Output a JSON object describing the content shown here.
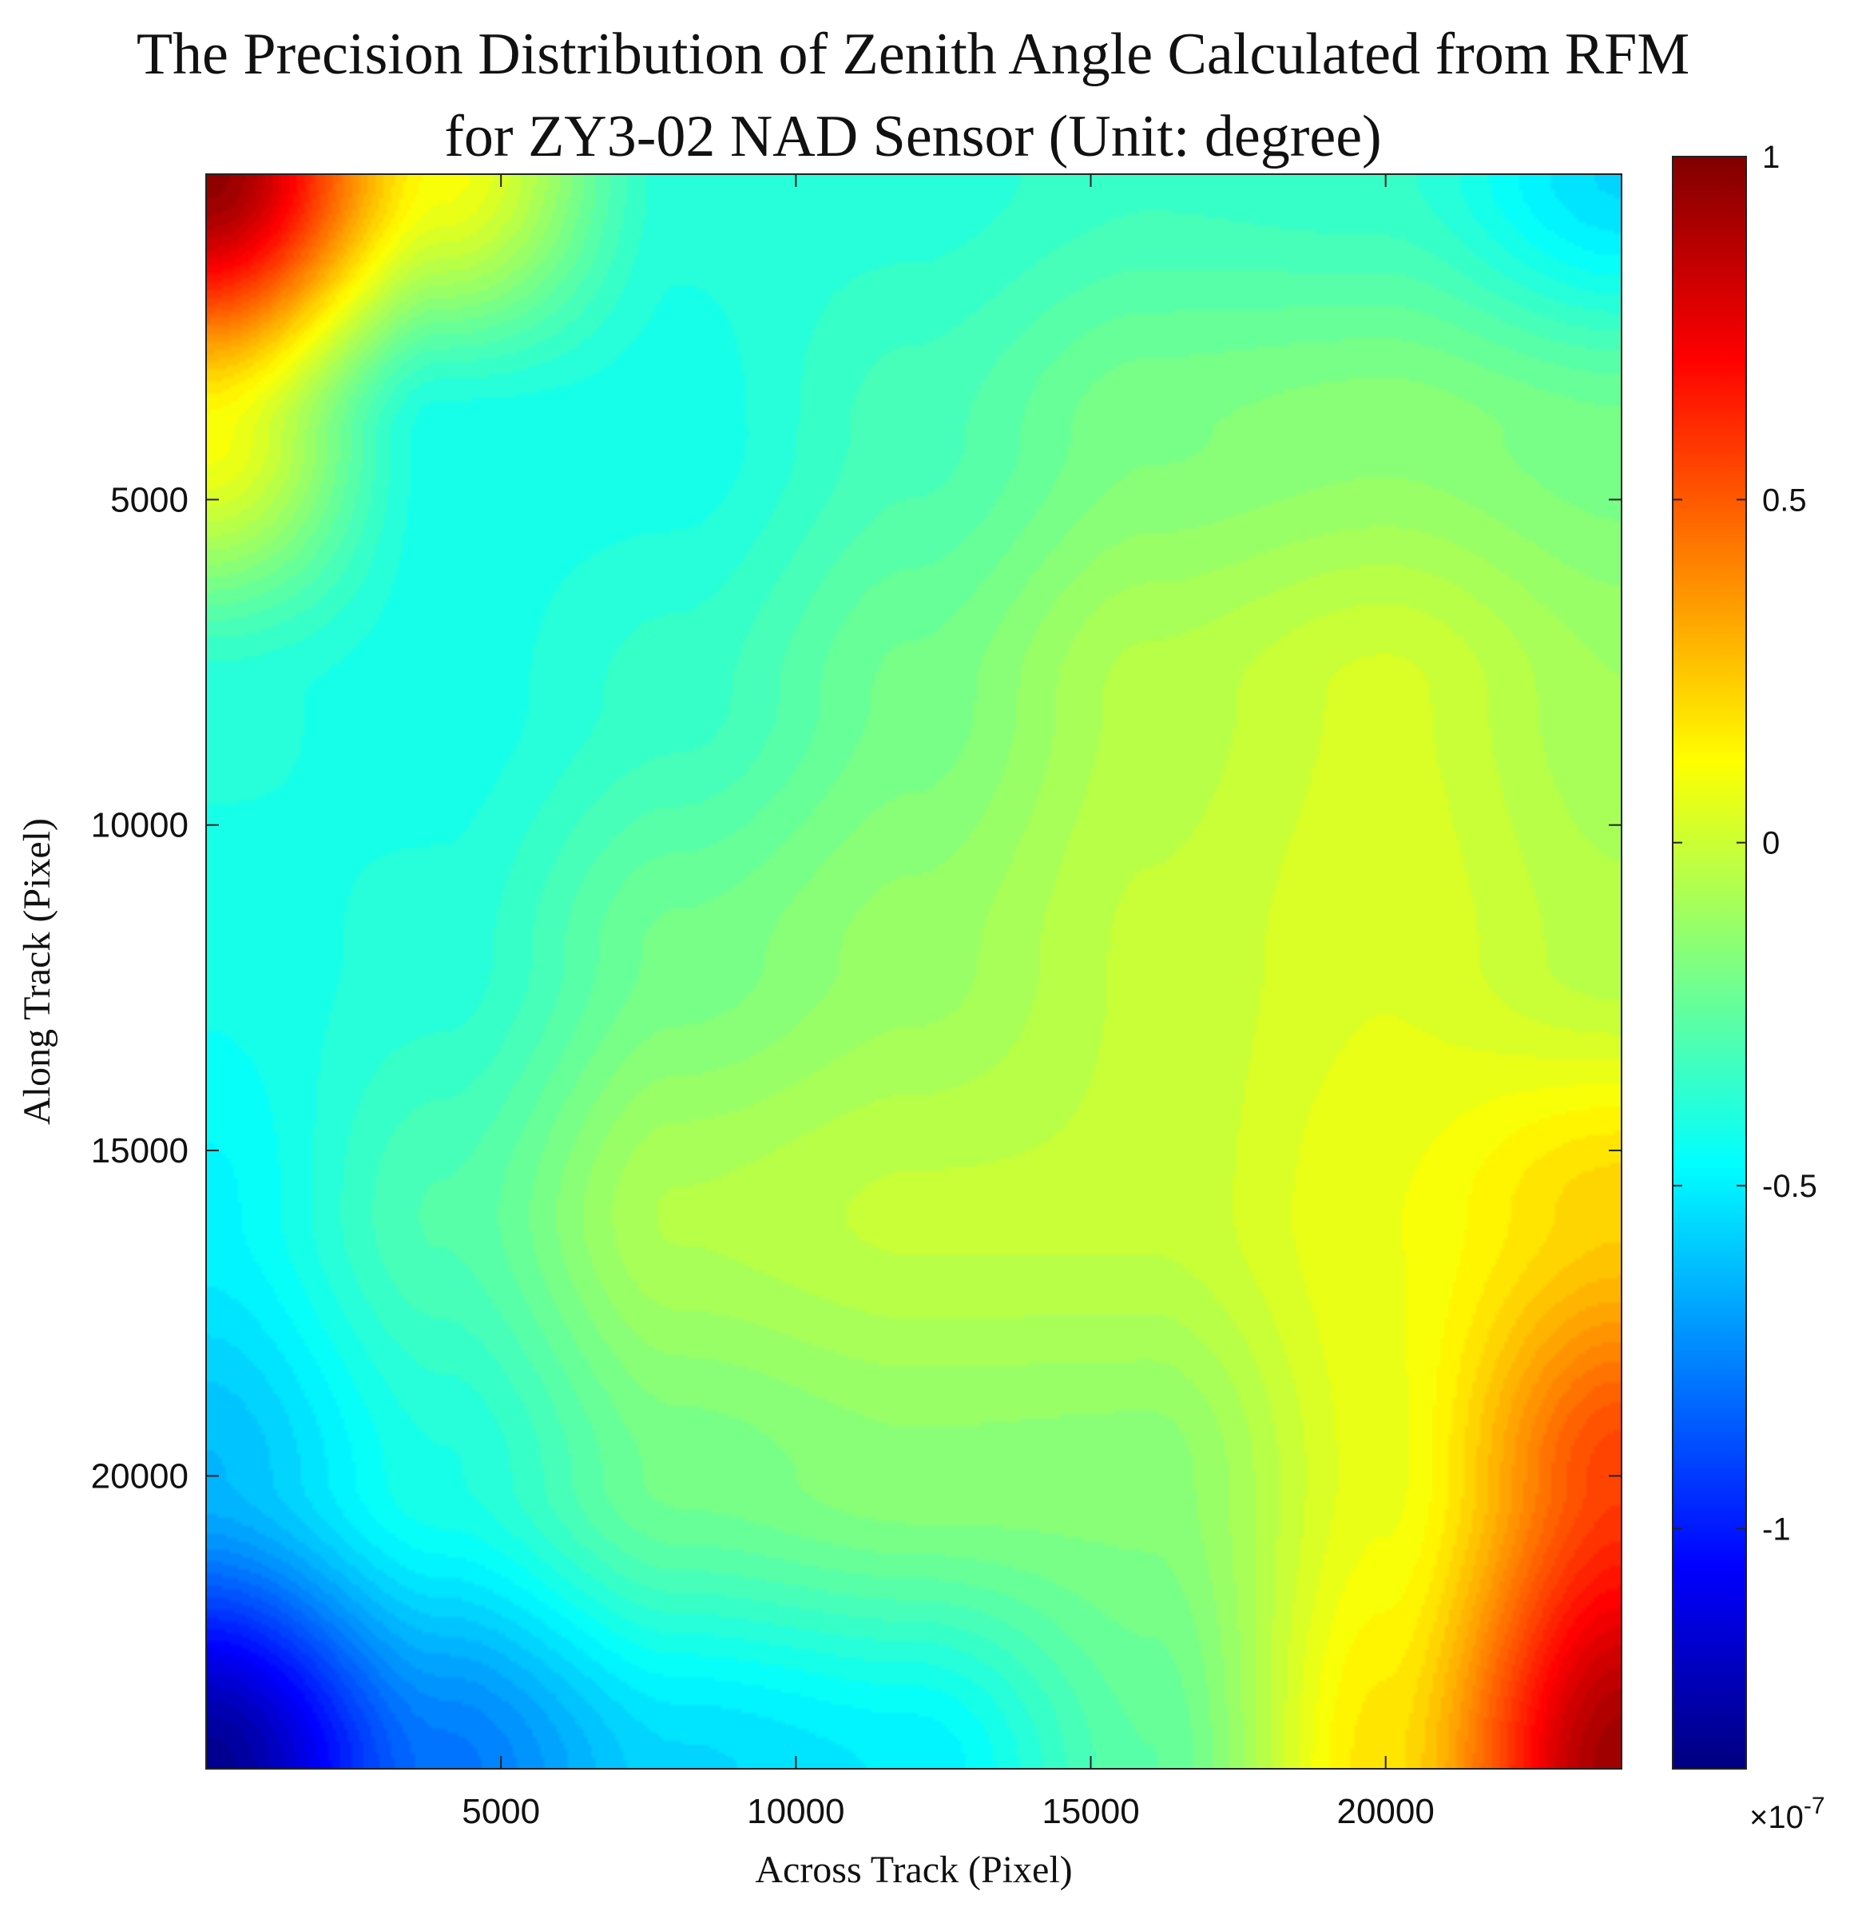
{
  "chart_data": {
    "type": "heatmap",
    "title_lines": [
      "The Precision Distribution of Zenith Angle Calculated from RFM",
      "for ZY3-02 NAD Sensor (Unit: degree)"
    ],
    "xlabel": "Across Track (Pixel)",
    "ylabel": "Along Track (Pixel)",
    "xlim": [
      0,
      24000
    ],
    "ylim": [
      0,
      24500
    ],
    "y_direction": "reversed",
    "xticks": [
      5000,
      10000,
      15000,
      20000
    ],
    "xtick_labels": [
      "5000",
      "10000",
      "15000",
      "20000"
    ],
    "yticks": [
      5000,
      10000,
      15000,
      20000
    ],
    "ytick_labels": [
      "5000",
      "10000",
      "15000",
      "20000"
    ],
    "colormap": "jet",
    "colorbar": {
      "clim": [
        -1.35,
        1
      ],
      "ticks": [
        1,
        0.5,
        0,
        -0.5,
        -1
      ],
      "tick_labels": [
        "1",
        "0.5",
        "0",
        "-0.5",
        "-1"
      ],
      "exponent_label": "×10",
      "exponent_power": "-7",
      "levels": 64
    },
    "grid": false,
    "value_samples": {
      "x": [
        0,
        4000,
        8000,
        12000,
        16000,
        20000,
        24000
      ],
      "y": [
        0,
        4000,
        8000,
        12000,
        16000,
        20000,
        24500
      ],
      "z": [
        [
          0.95,
          0.1,
          -0.38,
          -0.38,
          -0.33,
          -0.35,
          -0.55
        ],
        [
          0.1,
          -0.42,
          -0.42,
          -0.3,
          -0.18,
          -0.15,
          -0.2
        ],
        [
          -0.38,
          -0.42,
          -0.34,
          -0.2,
          -0.05,
          0.02,
          -0.1
        ],
        [
          -0.42,
          -0.38,
          -0.2,
          -0.12,
          -0.02,
          0.04,
          -0.05
        ],
        [
          -0.48,
          -0.28,
          -0.06,
          -0.02,
          -0.02,
          0.08,
          0.22
        ],
        [
          -0.62,
          -0.4,
          -0.2,
          -0.15,
          -0.16,
          0.07,
          0.55
        ],
        [
          -1.3,
          -0.78,
          -0.55,
          -0.5,
          -0.25,
          0.18,
          0.92
        ]
      ]
    }
  }
}
